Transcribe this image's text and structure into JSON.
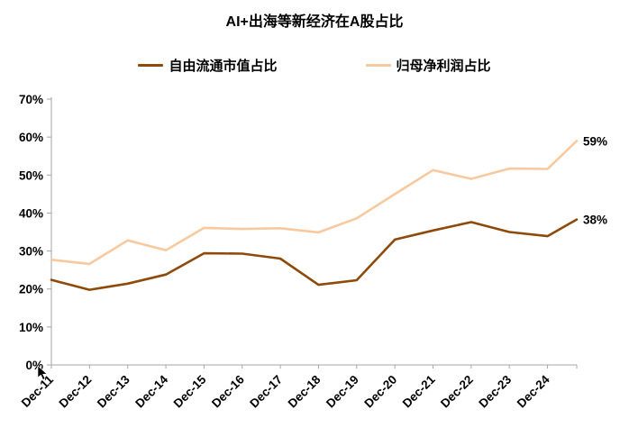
{
  "title": "AI+出海等新经济在A股占比",
  "legend": [
    {
      "label": "自由流通市值占比",
      "color": "#8e4a0b"
    },
    {
      "label": "归母净利润占比",
      "color": "#f8c99e"
    }
  ],
  "end_labels": {
    "free_float": "38%",
    "net_profit": "59%"
  },
  "chart_data": {
    "type": "line",
    "title": "AI+出海等新经济在A股占比",
    "categories": [
      "Dec-11",
      "Dec-12",
      "Dec-13",
      "Dec-14",
      "Dec-15",
      "Dec-16",
      "Dec-17",
      "Dec-18",
      "Dec-19",
      "Dec-20",
      "Dec-21",
      "Dec-22",
      "Dec-23",
      "Dec-24"
    ],
    "has_extra_unlabeled_latest_point": true,
    "series": [
      {
        "id": "free-float-mcap-share",
        "name": "自由流通市值占比",
        "color": "#8e4a0b",
        "values": [
          22.4,
          19.8,
          21.4,
          23.8,
          29.4,
          29.3,
          28.0,
          21.1,
          22.3,
          33.0,
          35.4,
          37.6,
          35.0,
          33.9,
          38.3
        ],
        "end_label": "38%"
      },
      {
        "id": "net-profit-share",
        "name": "归母净利润占比",
        "color": "#f8c99e",
        "values": [
          27.7,
          26.6,
          32.8,
          30.2,
          36.1,
          35.8,
          36.0,
          34.9,
          38.6,
          45.0,
          51.3,
          49.0,
          51.7,
          51.6,
          59.0
        ],
        "end_label": "59%"
      }
    ],
    "xlabel": "",
    "ylabel": "",
    "ylim": [
      0,
      70
    ],
    "y_tick_step": 10,
    "y_tick_labels": [
      "0%",
      "10%",
      "20%",
      "30%",
      "40%",
      "50%",
      "60%",
      "70%"
    ],
    "grid": false,
    "legend_position": "top",
    "axis_color": "#a6a6a6",
    "label_color": "#000000"
  }
}
